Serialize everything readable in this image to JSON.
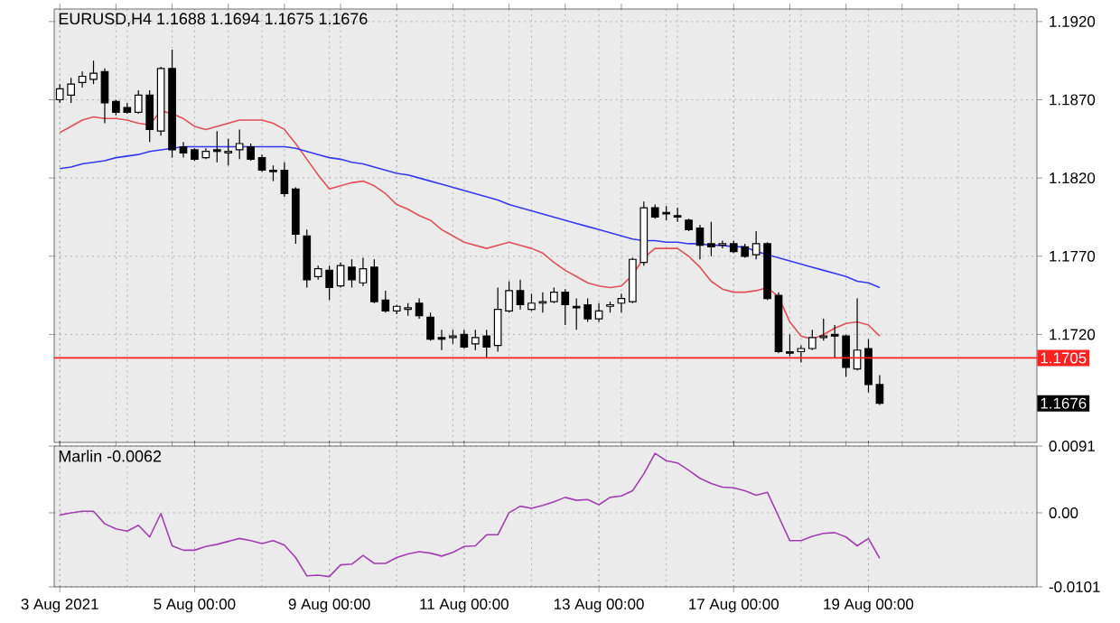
{
  "chart_data": [
    {
      "type": "candlestick",
      "title": "EURUSD,H4  1.1688 1.1694 1.1675 1.1676",
      "categories": [
        null,
        null,
        null,
        null,
        null,
        null,
        null,
        null,
        null,
        null,
        null,
        null,
        null,
        null,
        null,
        null,
        null,
        null,
        null,
        null,
        null,
        null,
        null,
        null,
        null,
        null,
        null,
        null,
        null,
        null,
        null,
        null,
        null,
        null,
        null,
        null,
        null,
        null,
        null,
        null,
        null,
        null,
        null,
        null,
        null,
        null,
        null,
        null,
        null,
        null,
        null,
        null,
        null,
        null,
        null,
        null,
        null,
        null,
        null,
        null,
        null,
        null,
        null,
        null,
        null,
        null,
        null,
        null,
        null,
        null,
        null,
        null,
        null,
        null
      ],
      "ohlc": [
        [
          1.187,
          1.188,
          1.1868,
          1.1877
        ],
        [
          1.1873,
          1.1884,
          1.1868,
          1.188
        ],
        [
          1.1881,
          1.1888,
          1.1878,
          1.1885
        ],
        [
          1.1883,
          1.1895,
          1.188,
          1.1887
        ],
        [
          1.1888,
          1.189,
          1.1855,
          1.1868
        ],
        [
          1.1869,
          1.187,
          1.186,
          1.1862
        ],
        [
          1.1865,
          1.1868,
          1.1861,
          1.1862
        ],
        [
          1.1862,
          1.1876,
          1.1861,
          1.1873
        ],
        [
          1.1873,
          1.1876,
          1.1843,
          1.1851
        ],
        [
          1.185,
          1.1891,
          1.1847,
          1.189
        ],
        [
          1.189,
          1.1902,
          1.1833,
          1.1838
        ],
        [
          1.184,
          1.1843,
          1.1833,
          1.1836
        ],
        [
          1.1838,
          1.1839,
          1.1831,
          1.1832
        ],
        [
          1.1833,
          1.1839,
          1.1832,
          1.1837
        ],
        [
          1.1838,
          1.185,
          1.183,
          1.1837
        ],
        [
          1.1836,
          1.1845,
          1.1828,
          1.1837
        ],
        [
          1.1838,
          1.1851,
          1.1832,
          1.1842
        ],
        [
          1.184,
          1.1842,
          1.1831,
          1.1832
        ],
        [
          1.1833,
          1.1835,
          1.1824,
          1.1825
        ],
        [
          1.1825,
          1.1828,
          1.1818,
          1.1824
        ],
        [
          1.1825,
          1.183,
          1.1808,
          1.181
        ],
        [
          1.1813,
          1.1814,
          1.1778,
          1.1784
        ],
        [
          1.1783,
          1.1787,
          1.175,
          1.1755
        ],
        [
          1.1757,
          1.1764,
          1.1755,
          1.1762
        ],
        [
          1.1761,
          1.1764,
          1.1742,
          1.175
        ],
        [
          1.1751,
          1.1766,
          1.175,
          1.1764
        ],
        [
          1.1763,
          1.1768,
          1.175,
          1.1755
        ],
        [
          1.1753,
          1.1769,
          1.1751,
          1.1762
        ],
        [
          1.1763,
          1.1768,
          1.174,
          1.1741
        ],
        [
          1.1742,
          1.1748,
          1.1734,
          1.1735
        ],
        [
          1.1735,
          1.1739,
          1.1733,
          1.1738
        ],
        [
          1.1736,
          1.174,
          1.1732,
          1.1737
        ],
        [
          1.174,
          1.1743,
          1.173,
          1.1732
        ],
        [
          1.1731,
          1.1734,
          1.1716,
          1.1717
        ],
        [
          1.1718,
          1.1723,
          1.171,
          1.1717
        ],
        [
          1.1718,
          1.1723,
          1.1714,
          1.1719
        ],
        [
          1.172,
          1.1723,
          1.1711,
          1.1712
        ],
        [
          1.1714,
          1.1723,
          1.171,
          1.1718
        ],
        [
          1.1719,
          1.1723,
          1.1705,
          1.1712
        ],
        [
          1.1713,
          1.175,
          1.1709,
          1.1736
        ],
        [
          1.1735,
          1.1754,
          1.1734,
          1.1748
        ],
        [
          1.1748,
          1.1755,
          1.1736,
          1.1739
        ],
        [
          1.1736,
          1.1746,
          1.1735,
          1.174
        ],
        [
          1.174,
          1.1747,
          1.1734,
          1.1741
        ],
        [
          1.1741,
          1.175,
          1.174,
          1.1747
        ],
        [
          1.1747,
          1.1749,
          1.1726,
          1.1739
        ],
        [
          1.1738,
          1.1743,
          1.1723,
          1.1737
        ],
        [
          1.1739,
          1.1743,
          1.1728,
          1.173
        ],
        [
          1.173,
          1.174,
          1.1728,
          1.1735
        ],
        [
          1.1738,
          1.1741,
          1.1734,
          1.1739
        ],
        [
          1.174,
          1.1746,
          1.1734,
          1.1743
        ],
        [
          1.1741,
          1.1769,
          1.174,
          1.1768
        ],
        [
          1.1766,
          1.1805,
          1.1764,
          1.1801
        ],
        [
          1.1801,
          1.1803,
          1.1794,
          1.1795
        ],
        [
          1.1798,
          1.1802,
          1.1793,
          1.1797
        ],
        [
          1.1796,
          1.1801,
          1.1792,
          1.1795
        ],
        [
          1.1793,
          1.1794,
          1.1786,
          1.1787
        ],
        [
          1.1788,
          1.179,
          1.1768,
          1.1777
        ],
        [
          1.1778,
          1.1792,
          1.177,
          1.1776
        ],
        [
          1.1777,
          1.178,
          1.1775,
          1.1778
        ],
        [
          1.1778,
          1.178,
          1.1772,
          1.1773
        ],
        [
          1.1776,
          1.1778,
          1.1769,
          1.177
        ],
        [
          1.1771,
          1.1786,
          1.1768,
          1.1778
        ],
        [
          1.1778,
          1.1779,
          1.1742,
          1.1743
        ],
        [
          1.1745,
          1.1747,
          1.1708,
          1.1709
        ],
        [
          1.1709,
          1.172,
          1.1706,
          1.1708
        ],
        [
          1.1709,
          1.1713,
          1.1702,
          1.1711
        ],
        [
          1.1711,
          1.1723,
          1.171,
          1.1718
        ],
        [
          1.1718,
          1.173,
          1.1716,
          1.1719
        ],
        [
          1.172,
          1.1726,
          1.1705,
          1.1719
        ],
        [
          1.1719,
          1.172,
          1.1693,
          1.1699
        ],
        [
          1.1698,
          1.1743,
          1.1697,
          1.171
        ],
        [
          1.1711,
          1.1717,
          1.1683,
          1.1688
        ],
        [
          1.1688,
          1.1694,
          1.1675,
          1.1676
        ]
      ],
      "series": [
        {
          "type": "line",
          "color": "#e0505a",
          "values": [
            1.1849,
            1.1853,
            1.1857,
            1.1859,
            1.1858,
            1.1858,
            1.1857,
            1.1855,
            1.1854,
            1.1863,
            1.1861,
            1.1858,
            1.1853,
            1.1851,
            1.1853,
            1.1855,
            1.1857,
            1.1857,
            1.1857,
            1.1855,
            1.1851,
            1.1842,
            1.1832,
            1.1822,
            1.1813,
            1.1815,
            1.1817,
            1.1818,
            1.1815,
            1.181,
            1.1803,
            1.18,
            1.1796,
            1.1793,
            1.1787,
            1.1783,
            1.1779,
            1.1777,
            1.1775,
            1.1777,
            1.1779,
            1.1777,
            1.1775,
            1.1772,
            1.1766,
            1.1761,
            1.1757,
            1.1753,
            1.1751,
            1.175,
            1.1751,
            1.1758,
            1.1769,
            1.1775,
            1.1775,
            1.1775,
            1.177,
            1.1763,
            1.1754,
            1.1749,
            1.1747,
            1.1747,
            1.1748,
            1.175,
            1.1744,
            1.1728,
            1.1719,
            1.1717,
            1.172,
            1.1724,
            1.1727,
            1.1728,
            1.1726,
            1.1719
          ]
        },
        {
          "type": "line",
          "color": "#3838f0",
          "values": [
            1.1826,
            1.1827,
            1.1829,
            1.183,
            1.1831,
            1.1833,
            1.1834,
            1.1835,
            1.1837,
            1.1838,
            1.1839,
            1.184,
            1.184,
            1.184,
            1.184,
            1.184,
            1.184,
            1.184,
            1.184,
            1.184,
            1.184,
            1.1839,
            1.1837,
            1.1835,
            1.1833,
            1.1832,
            1.183,
            1.1829,
            1.1827,
            1.1825,
            1.1823,
            1.1822,
            1.182,
            1.1818,
            1.1816,
            1.1814,
            1.1812,
            1.181,
            1.1808,
            1.1806,
            1.1803,
            1.1801,
            1.1799,
            1.1797,
            1.1795,
            1.1793,
            1.1791,
            1.1789,
            1.1787,
            1.1785,
            1.1783,
            1.1781,
            1.178,
            1.178,
            1.1779,
            1.1779,
            1.1778,
            1.1778,
            1.1777,
            1.1777,
            1.1776,
            1.1776,
            1.1773,
            1.1771,
            1.1769,
            1.1767,
            1.1765,
            1.1763,
            1.1761,
            1.1759,
            1.1757,
            1.1754,
            1.1753,
            1.175
          ]
        }
      ],
      "ylim": [
        1.1651,
        1.1928
      ],
      "yticks": [
        {
          "value": 1.192,
          "label": "1.1920"
        },
        {
          "value": 1.187,
          "label": "1.1870"
        },
        {
          "value": 1.182,
          "label": "1.1820"
        },
        {
          "value": 1.177,
          "label": "1.1770"
        },
        {
          "value": 1.172,
          "label": "1.1720"
        }
      ],
      "ref_lines": [
        {
          "axis": "y",
          "value": 1.1705,
          "label": "1.1705",
          "color": "#ff2020",
          "line_style": "solid"
        }
      ],
      "annotations": [
        "1.1676"
      ],
      "grid": true,
      "tick_labels": "y"
    },
    {
      "type": "line",
      "title": "Marlin -0.0062",
      "categories": [
        "3 Aug 2021",
        null,
        null,
        null,
        null,
        null,
        null,
        null,
        null,
        null,
        null,
        null,
        "5 Aug 00:00",
        null,
        null,
        null,
        null,
        null,
        null,
        null,
        null,
        null,
        null,
        null,
        "9 Aug 00:00",
        null,
        null,
        null,
        null,
        null,
        null,
        null,
        null,
        null,
        null,
        null,
        "11 Aug 00:00",
        null,
        null,
        null,
        null,
        null,
        null,
        null,
        null,
        null,
        null,
        null,
        "13 Aug 00:00",
        null,
        null,
        null,
        null,
        null,
        null,
        null,
        null,
        null,
        null,
        null,
        "17 Aug 00:00",
        null,
        null,
        null,
        null,
        null,
        null,
        null,
        null,
        null,
        null,
        null,
        "19 Aug 00:00",
        null
      ],
      "color": "#a040b0",
      "values": [
        -0.0003,
        0.0,
        0.0002,
        0.0002,
        -0.0015,
        -0.0022,
        -0.0025,
        -0.0017,
        -0.0033,
        -0.0001,
        -0.0045,
        -0.0051,
        -0.0051,
        -0.0046,
        -0.0043,
        -0.0039,
        -0.0035,
        -0.0038,
        -0.0042,
        -0.0038,
        -0.0044,
        -0.0061,
        -0.0086,
        -0.0085,
        -0.0087,
        -0.0071,
        -0.007,
        -0.0058,
        -0.0069,
        -0.0069,
        -0.0061,
        -0.0056,
        -0.0053,
        -0.0055,
        -0.0059,
        -0.0054,
        -0.0046,
        -0.0045,
        -0.003,
        -0.003,
        0.0,
        0.0009,
        0.0006,
        0.001,
        0.0015,
        0.0021,
        0.0017,
        0.0018,
        0.0011,
        0.0021,
        0.0023,
        0.003,
        0.0053,
        0.0081,
        0.0071,
        0.0068,
        0.0058,
        0.0047,
        0.004,
        0.0035,
        0.0034,
        0.003,
        0.0024,
        0.0028,
        -0.0005,
        -0.0038,
        -0.0038,
        -0.0032,
        -0.0028,
        -0.0027,
        -0.0033,
        -0.0045,
        -0.0035,
        -0.0062
      ],
      "ylim": [
        -0.0101,
        0.0091
      ],
      "yticks": [
        0.0091,
        {
          "value": 0,
          "label": "0.00"
        },
        -0.0101
      ],
      "grid": true
    }
  ]
}
